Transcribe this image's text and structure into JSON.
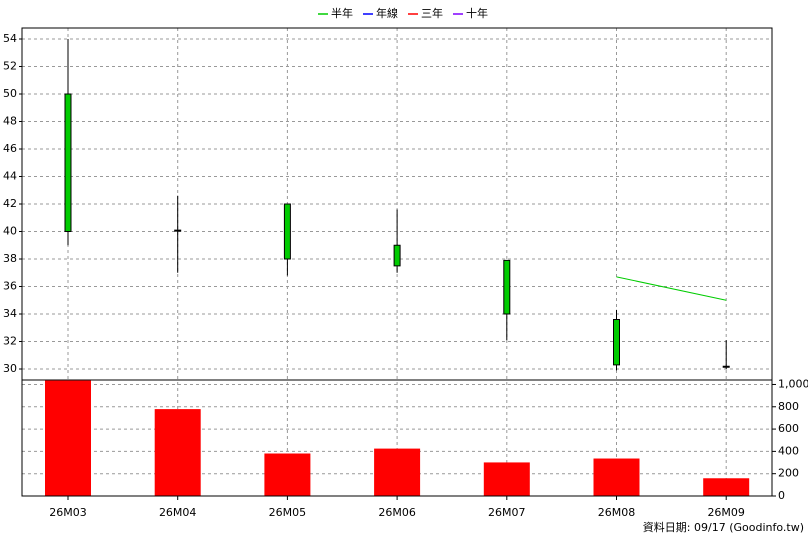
{
  "chart_data": {
    "type": "candlestick",
    "categories": [
      "26M03",
      "26M04",
      "26M05",
      "26M06",
      "26M07",
      "26M08",
      "26M09"
    ],
    "open": [
      50,
      40.1,
      42,
      39,
      37.9,
      33.6,
      30.2
    ],
    "high": [
      54,
      42.6,
      42,
      41.6,
      37.9,
      34.3,
      32.1
    ],
    "low": [
      39,
      37,
      36.8,
      37,
      32.1,
      29.9,
      30
    ],
    "close": [
      40,
      40.1,
      38,
      37.5,
      34,
      30.3,
      30.2
    ],
    "candle_color": "#00cc00",
    "series": [
      {
        "name": "半年",
        "color": "#00cc00",
        "values": [
          null,
          null,
          null,
          null,
          null,
          36.7,
          35
        ]
      },
      {
        "name": "年線",
        "color": "#0000ff",
        "values": [
          null,
          null,
          null,
          null,
          null,
          null,
          null
        ]
      },
      {
        "name": "三年",
        "color": "#ff0000",
        "values": [
          null,
          null,
          null,
          null,
          null,
          null,
          null
        ]
      },
      {
        "name": "十年",
        "color": "#8000ff",
        "values": [
          null,
          null,
          null,
          null,
          null,
          null,
          null
        ]
      }
    ],
    "volume": {
      "color": "#ff0000",
      "axis": "y2",
      "values": [
        1035,
        779,
        381,
        425,
        301,
        336,
        159
      ]
    },
    "ylim": [
      29.2,
      54.8
    ],
    "yticks": [
      30,
      32,
      34,
      36,
      38,
      40,
      42,
      44,
      46,
      48,
      50,
      52,
      54
    ],
    "y2lim": [
      0,
      1040
    ],
    "y2ticks": [
      0,
      200,
      400,
      600,
      800,
      {
        "value": 1000,
        "label": "1,000"
      }
    ],
    "grid": true,
    "footnote": "資料日期: 09/17 (Goodinfo.tw)"
  }
}
